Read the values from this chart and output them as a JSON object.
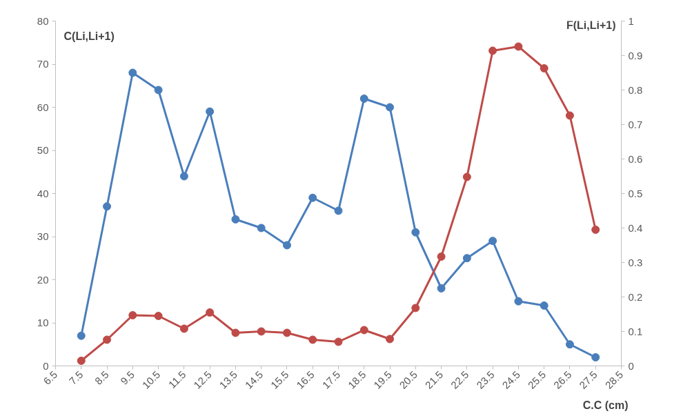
{
  "chart_data": {
    "type": "line",
    "ylabel": "C(Li,Li+1)",
    "y2label": "F(Li,Li+1)",
    "xlabel": "C.C (cm)",
    "x": [
      7.5,
      8.5,
      9.5,
      10.5,
      11.5,
      12.5,
      13.5,
      14.5,
      15.5,
      16.5,
      17.5,
      18.5,
      19.5,
      20.5,
      21.5,
      22.5,
      23.5,
      24.5,
      25.5,
      26.5,
      27.5
    ],
    "series": [
      {
        "color": "#4a7ebb",
        "values": [
          7,
          37,
          68,
          64,
          44,
          59,
          34,
          32,
          28,
          39,
          36,
          62,
          60,
          31,
          18,
          25,
          29,
          15,
          14,
          5,
          2
        ]
      },
      {
        "color": "#be4b48",
        "axis": "y2",
        "values": [
          0.015,
          0.076,
          0.147,
          0.145,
          0.108,
          0.155,
          0.096,
          0.1,
          0.096,
          0.076,
          0.07,
          0.104,
          0.078,
          0.168,
          0.317,
          0.548,
          0.914,
          0.926,
          0.863,
          0.726,
          0.395
        ]
      }
    ],
    "xlim": [
      6.5,
      28.5
    ],
    "xticks": [
      6.5,
      7.5,
      8.5,
      9.5,
      10.5,
      11.5,
      12.5,
      13.5,
      14.5,
      15.5,
      16.5,
      17.5,
      18.5,
      19.5,
      20.5,
      21.5,
      22.5,
      23.5,
      24.5,
      25.5,
      26.5,
      27.5,
      28.5
    ],
    "ylim": [
      0,
      80
    ],
    "yticks": [
      0,
      10,
      20,
      30,
      40,
      50,
      60,
      70,
      80
    ],
    "y2lim": [
      0,
      1
    ],
    "y2ticks": [
      0,
      0.1,
      0.2,
      0.3,
      0.4,
      0.5,
      0.6,
      0.7,
      0.8,
      0.9,
      1
    ],
    "grid": false,
    "marker": "circle",
    "line_style": "solid"
  }
}
